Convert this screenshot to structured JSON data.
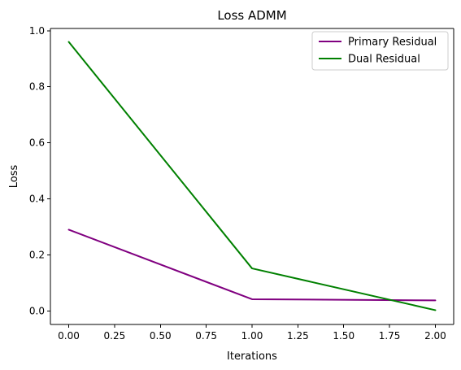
{
  "chart_data": {
    "type": "line",
    "title": "Loss ADMM",
    "xlabel": "Iterations",
    "ylabel": "Loss",
    "x": [
      0,
      1,
      2
    ],
    "xlim": [
      -0.1,
      2.1
    ],
    "ylim": [
      -0.048,
      1.008
    ],
    "xticks": [
      0.0,
      0.25,
      0.5,
      0.75,
      1.0,
      1.25,
      1.5,
      1.75,
      2.0
    ],
    "xtick_labels": [
      "0.00",
      "0.25",
      "0.50",
      "0.75",
      "1.00",
      "1.25",
      "1.50",
      "1.75",
      "2.00"
    ],
    "yticks": [
      0.0,
      0.2,
      0.4,
      0.6,
      0.8,
      1.0
    ],
    "ytick_labels": [
      "0.0",
      "0.2",
      "0.4",
      "0.6",
      "0.8",
      "1.0"
    ],
    "grid": false,
    "legend_position": "top-right",
    "series": [
      {
        "name": "Primary Residual",
        "color": "#800080",
        "values": [
          0.29,
          0.042,
          0.038
        ]
      },
      {
        "name": "Dual Residual",
        "color": "#008000",
        "values": [
          0.96,
          0.152,
          0.003
        ]
      }
    ]
  }
}
